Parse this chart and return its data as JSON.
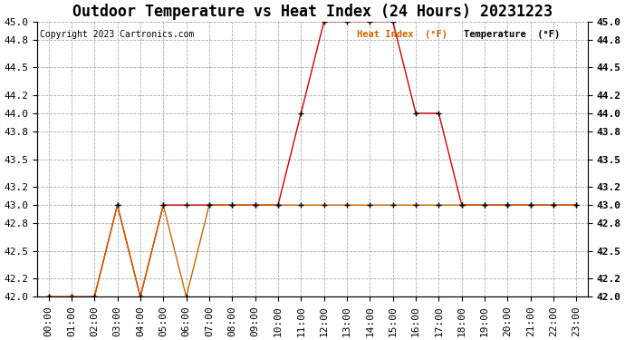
{
  "title": "Outdoor Temperature vs Heat Index (24 Hours) 20231223",
  "copyright": "Copyright 2023 Cartronics.com",
  "legend_heat": "Heat Index  (°F)",
  "legend_temp": "Temperature  (°F)",
  "hours": [
    "00:00",
    "01:00",
    "02:00",
    "03:00",
    "04:00",
    "05:00",
    "06:00",
    "07:00",
    "08:00",
    "09:00",
    "10:00",
    "11:00",
    "12:00",
    "13:00",
    "14:00",
    "15:00",
    "16:00",
    "17:00",
    "18:00",
    "19:00",
    "20:00",
    "21:00",
    "22:00",
    "23:00"
  ],
  "temperature": [
    42.0,
    42.0,
    42.0,
    43.0,
    42.0,
    43.0,
    42.0,
    43.0,
    43.0,
    43.0,
    43.0,
    43.0,
    43.0,
    43.0,
    43.0,
    43.0,
    43.0,
    43.0,
    43.0,
    43.0,
    43.0,
    43.0,
    43.0,
    43.0
  ],
  "heat_index": [
    42.0,
    42.0,
    42.0,
    43.0,
    42.0,
    43.0,
    43.0,
    43.0,
    43.0,
    43.0,
    43.0,
    44.0,
    45.0,
    45.0,
    45.0,
    45.0,
    44.0,
    44.0,
    43.0,
    43.0,
    43.0,
    43.0,
    43.0,
    43.0
  ],
  "heat_index_color": "#cc0000",
  "temperature_color": "#cc6600",
  "ylim_min": 42.0,
  "ylim_max": 45.0,
  "background_color": "#ffffff",
  "grid_color": "#aaaaaa",
  "title_fontsize": 12,
  "axis_fontsize": 8,
  "yticks": [
    42.0,
    42.2,
    42.5,
    42.8,
    43.0,
    43.2,
    43.5,
    43.8,
    44.0,
    44.2,
    44.5,
    44.8,
    45.0
  ]
}
